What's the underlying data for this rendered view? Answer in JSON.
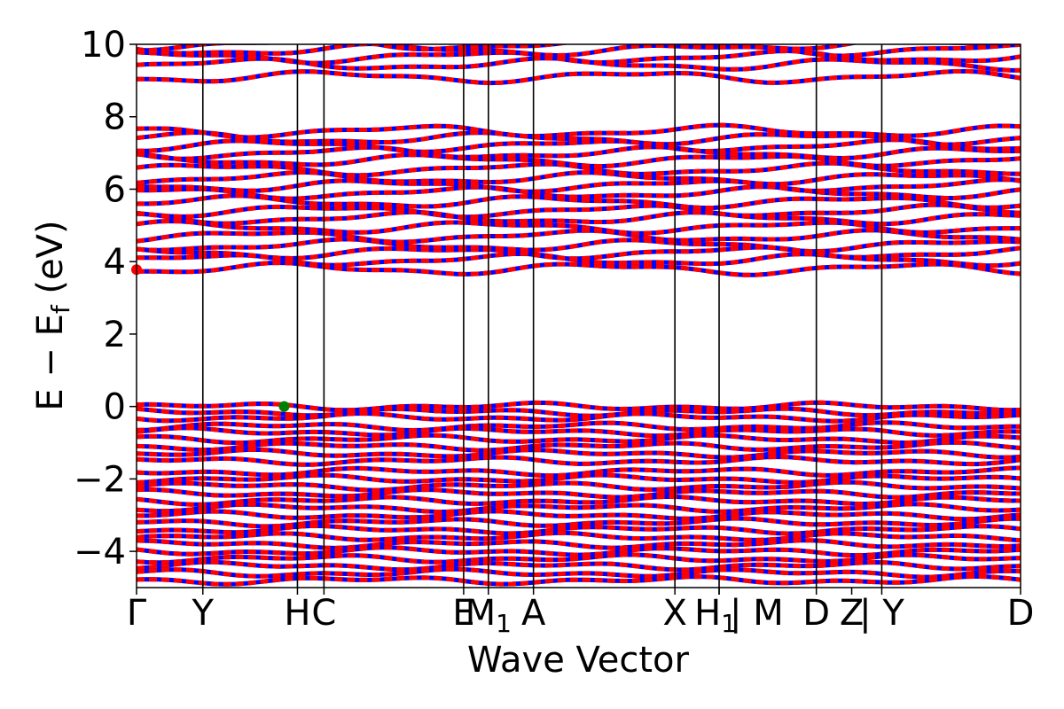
{
  "chart_data": {
    "type": "line",
    "title": "",
    "xlabel": "Wave Vector",
    "ylabel_parts": {
      "main": "E − E",
      "sub": "f",
      "unit": " (eV)"
    },
    "ylim": [
      -5,
      10
    ],
    "yticks": [
      10,
      8,
      6,
      4,
      2,
      0,
      -2,
      -4
    ],
    "ytick_labels": [
      "10",
      "8",
      "6",
      "4",
      "2",
      "0",
      "−2",
      "−4"
    ],
    "xlim": [
      0,
      1
    ],
    "kpoints": [
      {
        "label": "Γ",
        "x": 0.0
      },
      {
        "label": "Y",
        "x": 0.075
      },
      {
        "label": "H",
        "x": 0.182
      },
      {
        "label": "C",
        "x": 0.212
      },
      {
        "label": "E",
        "x": 0.37
      },
      {
        "label": "M",
        "sub": "1",
        "x": 0.398
      },
      {
        "label": "A",
        "x": 0.449
      },
      {
        "label": "X",
        "x": 0.609
      },
      {
        "label": "H",
        "sub": "1",
        "x": 0.659
      },
      {
        "label": "| M",
        "x": 0.659
      },
      {
        "label": "D",
        "x": 0.769
      },
      {
        "label": "Z",
        "x": 0.809
      },
      {
        "label": "| Y",
        "x": 0.843
      },
      {
        "label": "D",
        "x": 1.0
      }
    ],
    "kpoint_label_offsets_note": "labels drawn at tick positions",
    "segment_boundaries": [
      0.075,
      0.182,
      0.212,
      0.37,
      0.398,
      0.449,
      0.609,
      0.659,
      0.769,
      0.843
    ],
    "series_colors": {
      "spin_up": "#ff0000",
      "spin_down": "#0000ff"
    },
    "valence_bands": [
      0.0,
      -0.15,
      -0.3,
      -0.55,
      -0.7,
      -0.9,
      -1.1,
      -1.3,
      -1.5,
      -1.8,
      -2.0,
      -2.2,
      -2.4,
      -2.6,
      -2.8,
      -3.0,
      -3.2,
      -3.4,
      -3.6,
      -3.8,
      -4.0,
      -4.2,
      -4.4,
      -4.6,
      -4.8
    ],
    "conduction_bands": [
      3.8,
      4.05,
      4.25,
      4.45,
      4.7,
      4.95,
      5.2,
      5.4,
      5.65,
      5.9,
      6.1,
      6.3,
      6.55,
      6.8,
      7.0,
      7.2,
      7.4,
      7.6
    ],
    "high_bands": [
      9.1,
      9.45,
      9.65,
      9.85,
      10.0
    ],
    "markers": [
      {
        "name": "cbm",
        "x": 0.0,
        "y": 3.78,
        "color": "#ff0000"
      },
      {
        "name": "vbm",
        "x": 0.167,
        "y": 0.0,
        "color": "#008000"
      }
    ]
  }
}
